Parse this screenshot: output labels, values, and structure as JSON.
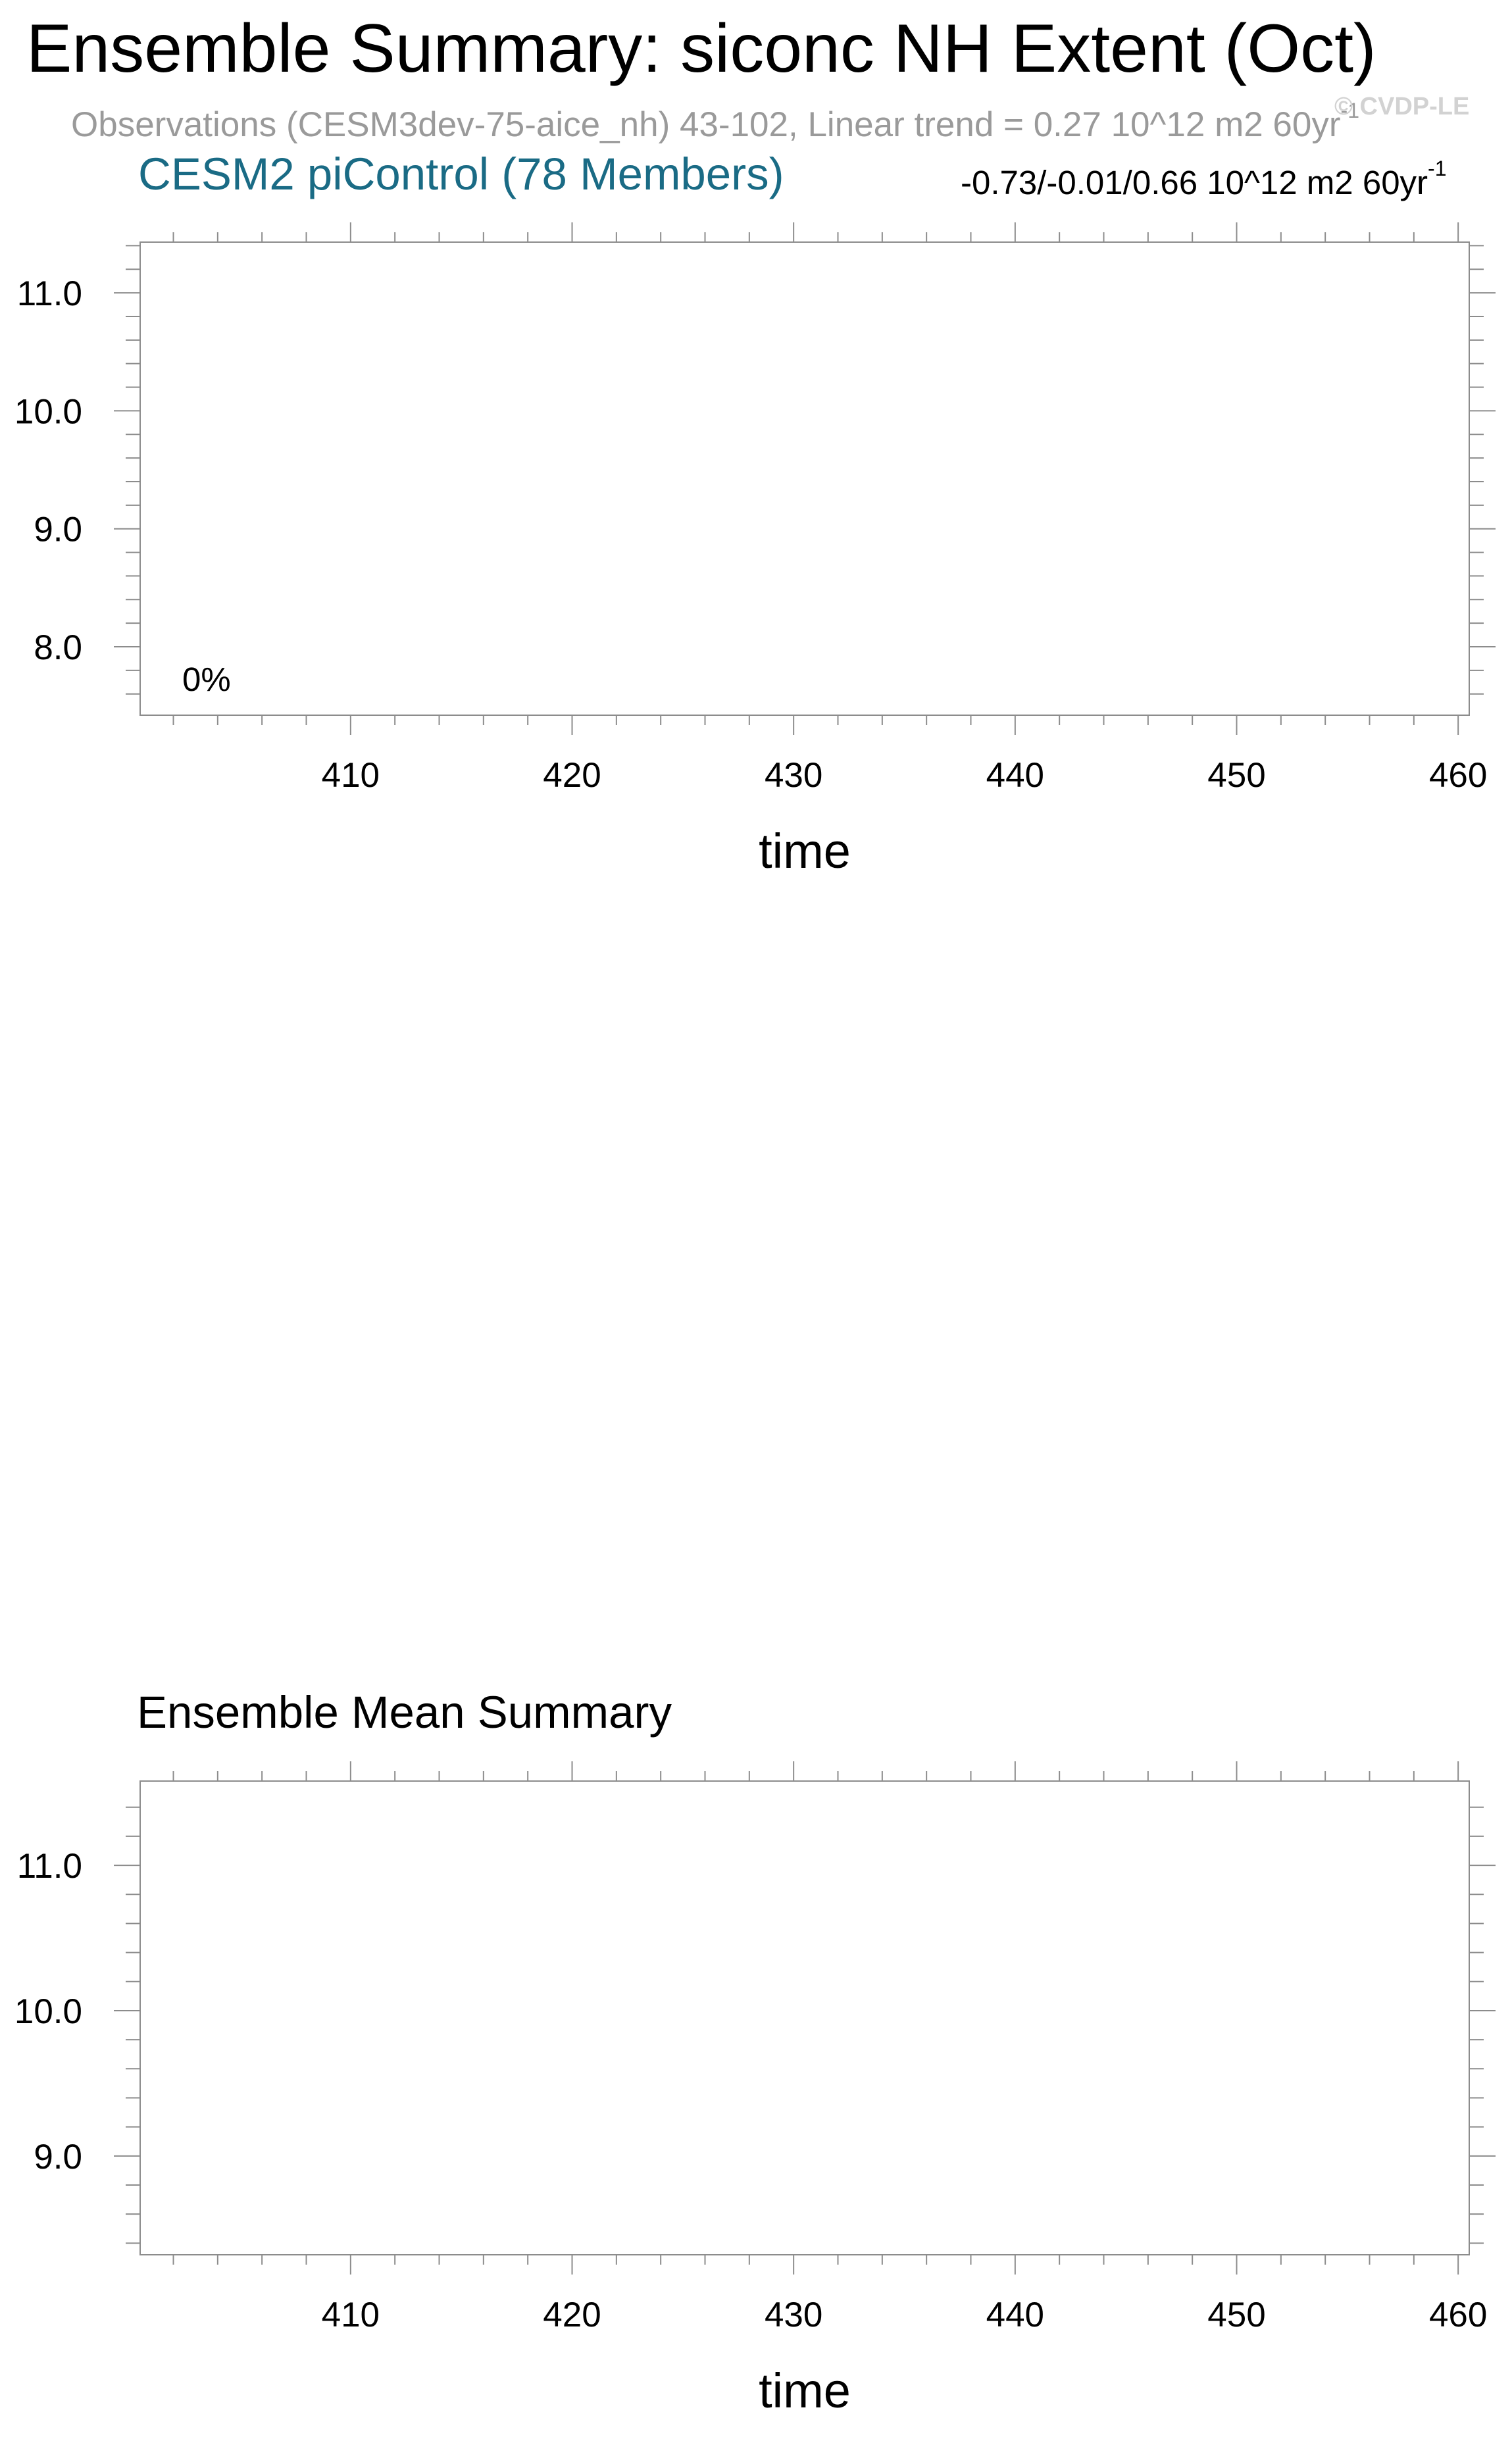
{
  "header": {
    "title": "Ensemble Summary: siconc NH Extent (Oct)",
    "observations_text": "Observations (CESM3dev-75-aice_nh) 43-102, Linear trend = 0.27 10^12 m2 60yr",
    "observations_exponent": "-1",
    "watermark": "© CVDP-LE"
  },
  "chart_data": [
    {
      "type": "line",
      "title": "CESM2 piControl (78 Members)",
      "annotation_right": "-0.73/-0.01/0.66 10^12 m2 60yr",
      "annotation_right_exponent": "-1",
      "annotation_inside": "0%",
      "xlabel": "time",
      "ylabel": "",
      "xlim": [
        400.5,
        460.5
      ],
      "ylim": [
        7.42,
        11.43
      ],
      "xticks": [
        410,
        420,
        430,
        440,
        450,
        460
      ],
      "xtick_labels": [
        "410",
        "420",
        "430",
        "440",
        "450",
        "460"
      ],
      "yticks": [
        8.0,
        9.0,
        10.0,
        11.0
      ],
      "ytick_labels": [
        "8.0",
        "9.0",
        "10.0",
        "11.0"
      ],
      "series": []
    },
    {
      "type": "line",
      "title": "Ensemble Mean Summary",
      "xlabel": "time",
      "ylabel": "",
      "xlim": [
        400.5,
        460.5
      ],
      "ylim": [
        8.32,
        11.58
      ],
      "xticks": [
        410,
        420,
        430,
        440,
        450,
        460
      ],
      "xtick_labels": [
        "410",
        "420",
        "430",
        "440",
        "450",
        "460"
      ],
      "yticks": [
        9.0,
        10.0,
        11.0
      ],
      "ytick_labels": [
        "9.0",
        "10.0",
        "11.0"
      ],
      "series": []
    }
  ]
}
